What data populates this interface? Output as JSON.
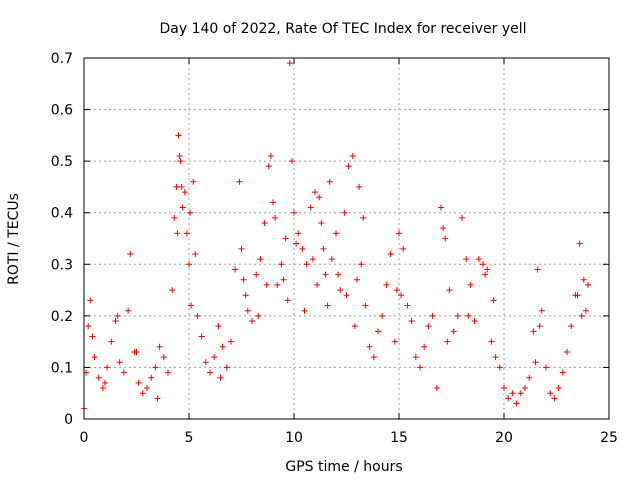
{
  "chart_data": {
    "type": "scatter",
    "title": "Day 140 of 2022, Rate Of TEC Index for receiver yell",
    "xlabel": "GPS time / hours",
    "ylabel": "ROTI / TECUs",
    "xlim": [
      0,
      25
    ],
    "ylim": [
      0,
      0.7
    ],
    "xticks": [
      0,
      5,
      10,
      15,
      20,
      25
    ],
    "yticks": [
      0,
      0.1,
      0.2,
      0.3,
      0.4,
      0.5,
      0.6,
      0.7
    ],
    "xtick_labels": [
      "0",
      "5",
      "10",
      "15",
      "20",
      "25"
    ],
    "ytick_labels": [
      "0",
      "0.1",
      "0.2",
      "0.3",
      "0.4",
      "0.5",
      "0.6",
      "0.7"
    ],
    "grid": true,
    "marker": "+",
    "color": "#ff0000",
    "series": [
      {
        "x": [
          0.0,
          0.1,
          0.2,
          0.3,
          0.5,
          0.7,
          0.9,
          1.1,
          1.3,
          1.5,
          1.7,
          1.9,
          2.1,
          2.2,
          2.4,
          2.6,
          2.8,
          3.0,
          3.2,
          3.4,
          3.6,
          3.8,
          4.0,
          4.2,
          4.3,
          4.4,
          4.5,
          4.55,
          4.6,
          4.7,
          4.8,
          4.9,
          5.0,
          5.1,
          5.2,
          5.4,
          5.6,
          5.8,
          6.0,
          6.2,
          6.4,
          6.6,
          6.8,
          7.0,
          7.2,
          7.4,
          7.5,
          7.6,
          7.8,
          8.0,
          8.2,
          8.4,
          8.6,
          8.8,
          8.9,
          9.0,
          9.2,
          9.4,
          9.6,
          9.8,
          9.9,
          10.0,
          10.2,
          10.4,
          10.6,
          10.8,
          11.0,
          11.2,
          11.3,
          11.4,
          11.5,
          11.6,
          11.8,
          12.0,
          12.2,
          12.4,
          12.6,
          12.8,
          13.0,
          13.2,
          13.4,
          13.6,
          13.8,
          14.0,
          14.2,
          14.4,
          14.6,
          14.8,
          15.0,
          15.2,
          15.4,
          15.6,
          15.8,
          16.0,
          16.2,
          16.4,
          16.6,
          16.8,
          17.0,
          17.1,
          17.2,
          17.4,
          17.6,
          17.8,
          18.0,
          18.2,
          18.4,
          18.6,
          18.8,
          19.0,
          19.2,
          19.4,
          19.6,
          19.8,
          20.0,
          20.2,
          20.4,
          20.6,
          20.8,
          21.0,
          21.2,
          21.4,
          21.6,
          21.8,
          22.0,
          22.2,
          22.4,
          22.6,
          22.8,
          23.0,
          23.2,
          23.4,
          23.6,
          23.7,
          23.8,
          24.0,
          0.4,
          1.0,
          1.6,
          2.5,
          3.5,
          4.45,
          4.65,
          5.05,
          5.3,
          6.5,
          7.7,
          8.3,
          8.7,
          9.1,
          9.5,
          9.7,
          10.1,
          10.5,
          10.9,
          11.1,
          11.7,
          12.1,
          12.5,
          12.9,
          13.1,
          13.3,
          14.9,
          15.1,
          17.3,
          18.3,
          19.1,
          19.5,
          21.5,
          21.7,
          23.5,
          23.9
        ],
        "y": [
          0.02,
          0.09,
          0.18,
          0.23,
          0.12,
          0.08,
          0.06,
          0.1,
          0.15,
          0.19,
          0.11,
          0.09,
          0.21,
          0.32,
          0.13,
          0.07,
          0.05,
          0.06,
          0.08,
          0.1,
          0.14,
          0.12,
          0.09,
          0.25,
          0.39,
          0.45,
          0.55,
          0.51,
          0.5,
          0.41,
          0.44,
          0.36,
          0.3,
          0.22,
          0.46,
          0.2,
          0.16,
          0.11,
          0.09,
          0.12,
          0.18,
          0.14,
          0.1,
          0.15,
          0.29,
          0.46,
          0.33,
          0.27,
          0.21,
          0.19,
          0.28,
          0.31,
          0.38,
          0.49,
          0.51,
          0.42,
          0.26,
          0.3,
          0.35,
          0.69,
          0.5,
          0.4,
          0.36,
          0.33,
          0.3,
          0.41,
          0.44,
          0.43,
          0.38,
          0.33,
          0.28,
          0.22,
          0.31,
          0.36,
          0.25,
          0.4,
          0.49,
          0.51,
          0.27,
          0.3,
          0.22,
          0.14,
          0.12,
          0.17,
          0.2,
          0.26,
          0.32,
          0.15,
          0.36,
          0.33,
          0.22,
          0.19,
          0.12,
          0.1,
          0.14,
          0.18,
          0.2,
          0.06,
          0.41,
          0.37,
          0.35,
          0.25,
          0.17,
          0.2,
          0.39,
          0.31,
          0.26,
          0.19,
          0.31,
          0.3,
          0.29,
          0.15,
          0.12,
          0.1,
          0.06,
          0.04,
          0.05,
          0.03,
          0.05,
          0.06,
          0.08,
          0.17,
          0.29,
          0.21,
          0.1,
          0.05,
          0.04,
          0.06,
          0.09,
          0.13,
          0.18,
          0.24,
          0.34,
          0.2,
          0.27,
          0.26,
          0.16,
          0.07,
          0.2,
          0.13,
          0.04,
          0.36,
          0.45,
          0.4,
          0.32,
          0.08,
          0.24,
          0.2,
          0.26,
          0.39,
          0.27,
          0.23,
          0.34,
          0.21,
          0.31,
          0.26,
          0.46,
          0.28,
          0.24,
          0.18,
          0.45,
          0.39,
          0.25,
          0.24,
          0.15,
          0.2,
          0.28,
          0.23,
          0.11,
          0.18,
          0.24,
          0.21
        ]
      }
    ]
  }
}
